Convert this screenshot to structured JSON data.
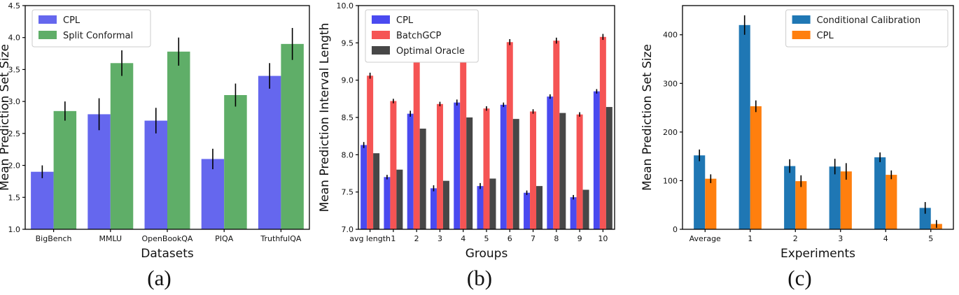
{
  "figure": {
    "background": "#ffffff",
    "captions": {
      "a": "(a)",
      "b": "(b)",
      "c": "(c)"
    }
  },
  "chart_data": [
    {
      "id": "a",
      "type": "bar",
      "title": "",
      "xlabel": "Datasets",
      "ylabel": "Mean Prediction Set Size",
      "categories": [
        "BigBench",
        "MMLU",
        "OpenBookQA",
        "PIQA",
        "TruthfulQA"
      ],
      "ylim": [
        1.0,
        4.5
      ],
      "yticks": [
        1.0,
        1.5,
        2.0,
        2.5,
        3.0,
        3.5,
        4.0,
        4.5
      ],
      "ytick_labels": [
        "1.0",
        "1.5",
        "2.0",
        "2.5",
        "3.0",
        "3.5",
        "4.0",
        "4.5"
      ],
      "grid": false,
      "legend_position": "upper-left",
      "error_bars": true,
      "series": [
        {
          "name": "CPL",
          "color": "#6567ee",
          "values": [
            1.9,
            2.8,
            2.7,
            2.1,
            3.4
          ],
          "errors": [
            0.1,
            0.25,
            0.2,
            0.16,
            0.2
          ]
        },
        {
          "name": "Split Conformal",
          "color": "#5fae68",
          "values": [
            2.85,
            3.6,
            3.78,
            3.1,
            3.9
          ],
          "errors": [
            0.15,
            0.2,
            0.22,
            0.18,
            0.25
          ]
        }
      ]
    },
    {
      "id": "b",
      "type": "bar",
      "title": "",
      "xlabel": "Groups",
      "ylabel": "Mean Prediction Interval Length",
      "categories": [
        "avg length",
        "1",
        "2",
        "3",
        "4",
        "5",
        "6",
        "7",
        "8",
        "9",
        "10"
      ],
      "ylim": [
        7.0,
        10.0
      ],
      "yticks": [
        7.0,
        7.5,
        8.0,
        8.5,
        9.0,
        9.5,
        10.0
      ],
      "ytick_labels": [
        "7.0",
        "7.5",
        "8.0",
        "8.5",
        "9.0",
        "9.5",
        "10.0"
      ],
      "grid": false,
      "legend_position": "upper-left",
      "error_bars": true,
      "series": [
        {
          "name": "CPL",
          "color": "#4a4af0",
          "values": [
            8.13,
            7.7,
            8.55,
            7.55,
            8.7,
            7.58,
            8.67,
            7.49,
            8.78,
            7.43,
            8.85
          ],
          "errors": [
            0.04,
            0.03,
            0.04,
            0.04,
            0.04,
            0.04,
            0.03,
            0.03,
            0.03,
            0.03,
            0.03
          ]
        },
        {
          "name": "BatchGCP",
          "color": "#f55454",
          "values": [
            9.06,
            8.72,
            9.42,
            8.68,
            9.45,
            8.62,
            9.51,
            8.58,
            9.53,
            8.54,
            9.58
          ],
          "errors": [
            0.04,
            0.03,
            0.04,
            0.03,
            0.04,
            0.03,
            0.04,
            0.03,
            0.04,
            0.03,
            0.04
          ]
        },
        {
          "name": "Optimal Oracle",
          "color": "#474747",
          "values": [
            8.02,
            7.8,
            8.35,
            7.65,
            8.5,
            7.68,
            8.48,
            7.58,
            8.56,
            7.53,
            8.64
          ],
          "errors": null
        }
      ]
    },
    {
      "id": "c",
      "type": "bar",
      "title": "",
      "xlabel": "Experiments",
      "ylabel": "Mean Prediction Set Size",
      "categories": [
        "Average",
        "1",
        "2",
        "3",
        "4",
        "5"
      ],
      "ylim": [
        0,
        460
      ],
      "yticks": [
        0,
        100,
        200,
        300,
        400
      ],
      "ytick_labels": [
        "0",
        "100",
        "200",
        "300",
        "400"
      ],
      "grid": false,
      "legend_position": "upper-right",
      "error_bars": true,
      "series": [
        {
          "name": "Conditional Calibration",
          "color": "#1f77b4",
          "values": [
            152,
            420,
            130,
            129,
            148,
            44
          ],
          "errors": [
            12,
            20,
            14,
            16,
            10,
            12
          ]
        },
        {
          "name": "CPL",
          "color": "#ff7f0e",
          "values": [
            104,
            253,
            99,
            119,
            112,
            11
          ],
          "errors": [
            9,
            12,
            12,
            17,
            9,
            8
          ]
        }
      ]
    }
  ]
}
